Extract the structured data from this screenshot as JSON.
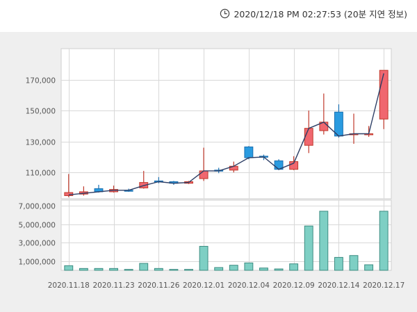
{
  "header": {
    "timestamp": "2020/12/18 PM 02:27:53 (20분 지연 정보)",
    "clock_icon": "clock-icon"
  },
  "colors": {
    "up": "#f0676f",
    "up_stroke": "#c0392b",
    "down": "#2a9be0",
    "down_stroke": "#1a6fb0",
    "volume": "#7ecfc4",
    "volume_stroke": "#3d8c82",
    "ma_line": "#2e3f66",
    "grid": "#d8d8d8",
    "panel_bg": "#efefef"
  },
  "chart_data": {
    "type": "candlestick",
    "price_axis": {
      "ticks": [
        110000,
        130000,
        150000,
        170000
      ],
      "tick_labels": [
        "110,000",
        "130,000",
        "150,000",
        "170,000"
      ],
      "range": [
        93000,
        190000
      ]
    },
    "volume_axis": {
      "ticks": [
        1000000,
        3000000,
        5000000,
        7000000
      ],
      "tick_labels": [
        "1,000,000",
        "3,000,000",
        "5,000,000",
        "7,000,000"
      ],
      "range": [
        0,
        7600000
      ]
    },
    "x_labels": [
      "2020.11.18",
      "2020.11.23",
      "2020.11.26",
      "2020.12.01",
      "2020.12.04",
      "2020.12.09",
      "2020.12.14",
      "2020.12.17"
    ],
    "x_label_indices": [
      0,
      3,
      6,
      9,
      12,
      15,
      18,
      21
    ],
    "candles": [
      {
        "open": 95000,
        "close": 97000,
        "high": 109000,
        "low": 94000,
        "volume": 500000
      },
      {
        "open": 96000,
        "close": 97500,
        "high": 101000,
        "low": 95000,
        "volume": 200000
      },
      {
        "open": 99500,
        "close": 97500,
        "high": 102000,
        "low": 97000,
        "volume": 200000
      },
      {
        "open": 97500,
        "close": 99000,
        "high": 101500,
        "low": 97000,
        "volume": 200000
      },
      {
        "open": 98500,
        "close": 98000,
        "high": 99500,
        "low": 97500,
        "volume": 100000
      },
      {
        "open": 100000,
        "close": 103500,
        "high": 111000,
        "low": 99500,
        "volume": 750000
      },
      {
        "open": 104500,
        "close": 104000,
        "high": 107000,
        "low": 103000,
        "volume": 200000
      },
      {
        "open": 104000,
        "close": 103000,
        "high": 104500,
        "low": 102000,
        "volume": 100000
      },
      {
        "open": 103000,
        "close": 104000,
        "high": 104500,
        "low": 102500,
        "volume": 100000
      },
      {
        "open": 106000,
        "close": 111000,
        "high": 126000,
        "low": 104500,
        "volume": 2600000
      },
      {
        "open": 111500,
        "close": 111000,
        "high": 113000,
        "low": 109500,
        "volume": 300000
      },
      {
        "open": 111500,
        "close": 114000,
        "high": 117000,
        "low": 110000,
        "volume": 550000
      },
      {
        "open": 126500,
        "close": 119500,
        "high": 127000,
        "low": 118500,
        "volume": 800000
      },
      {
        "open": 120500,
        "close": 120000,
        "high": 121500,
        "low": 118000,
        "volume": 250000
      },
      {
        "open": 117500,
        "close": 112000,
        "high": 118500,
        "low": 111500,
        "volume": 150000
      },
      {
        "open": 112000,
        "close": 117000,
        "high": 120500,
        "low": 111500,
        "volume": 700000
      },
      {
        "open": 127500,
        "close": 138500,
        "high": 150000,
        "low": 122500,
        "volume": 4800000
      },
      {
        "open": 137000,
        "close": 142500,
        "high": 161000,
        "low": 134500,
        "volume": 6400000
      },
      {
        "open": 149000,
        "close": 133500,
        "high": 154000,
        "low": 132500,
        "volume": 1400000
      },
      {
        "open": 135000,
        "close": 135000,
        "high": 148000,
        "low": 128500,
        "volume": 1600000
      },
      {
        "open": 135000,
        "close": 135000,
        "high": 140000,
        "low": 133000,
        "volume": 600000
      },
      {
        "open": 144500,
        "close": 176000,
        "high": 176000,
        "low": 138000,
        "volume": 6400000
      }
    ],
    "line_series": {
      "name": "closing price line",
      "values": [
        95500,
        96500,
        97500,
        98500,
        98500,
        101500,
        104000,
        103000,
        103500,
        111000,
        111000,
        114000,
        119500,
        120000,
        112000,
        116000,
        138500,
        142500,
        133500,
        135000,
        135000,
        174000
      ]
    }
  }
}
